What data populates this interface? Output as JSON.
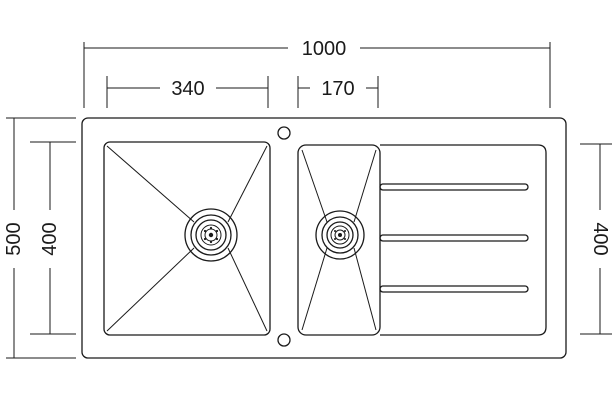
{
  "drawing": {
    "title": "",
    "dimensions": {
      "overall_width": "1000",
      "main_bowl_width": "340",
      "half_bowl_width": "170",
      "overall_depth": "500",
      "bowl_depth": "400",
      "drainer_depth": "400"
    }
  }
}
